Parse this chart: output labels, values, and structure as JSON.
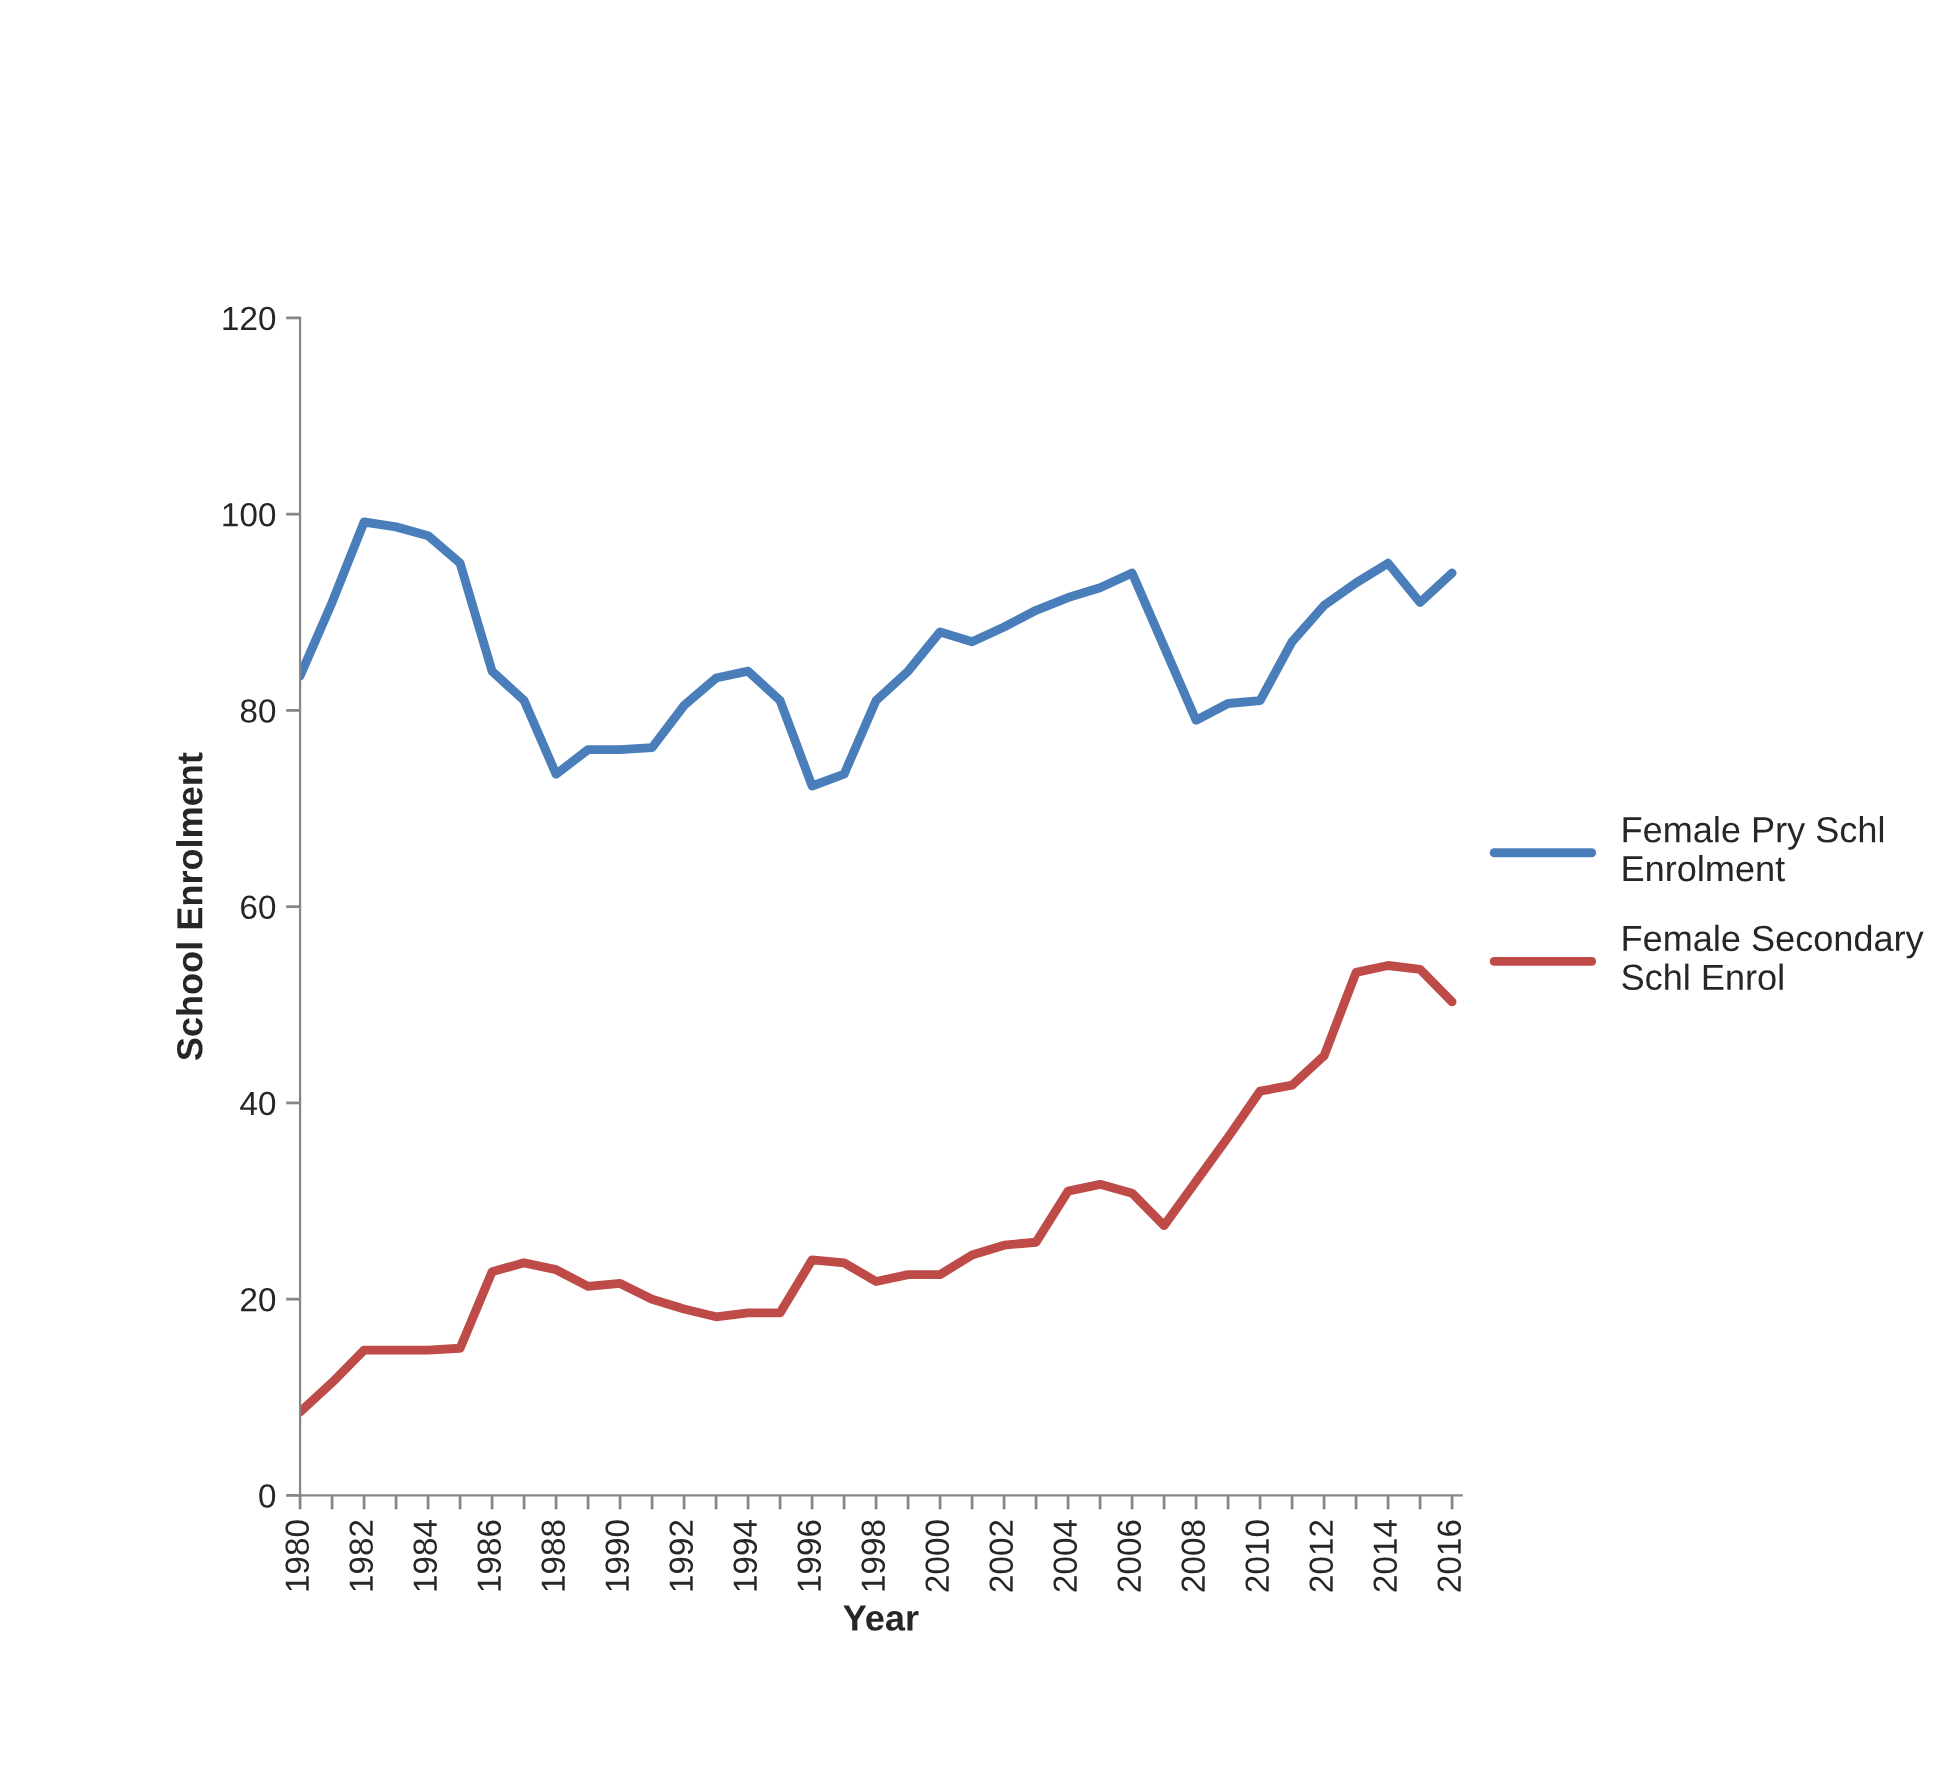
{
  "chart_data": {
    "type": "line",
    "xlabel": "Year",
    "ylabel": "School Enrolment",
    "categories": [
      "1980",
      null,
      "1982",
      null,
      "1984",
      null,
      "1986",
      null,
      "1988",
      null,
      "1990",
      null,
      "1992",
      null,
      "1994",
      null,
      "1996",
      null,
      "1998",
      null,
      "2000",
      null,
      "2002",
      null,
      "2004",
      null,
      "2006",
      null,
      "2008",
      null,
      "2010",
      null,
      "2012",
      null,
      "2014",
      null,
      "2016"
    ],
    "series": [
      {
        "name": "Female Pry Schl Enrolment",
        "color": "#4a7ebb",
        "values": [
          83.5,
          91,
          99.2,
          98.7,
          97.8,
          95,
          84,
          81,
          73.5,
          76,
          76,
          76.2,
          80.5,
          83.3,
          84,
          81,
          72.3,
          73.5,
          81,
          84,
          88,
          87,
          88.5,
          90.2,
          91.5,
          92.5,
          94,
          86.5,
          79,
          80.7,
          81,
          87,
          90.7,
          93,
          95,
          91,
          94
        ]
      },
      {
        "name": "Female Secondary Schl Enrol",
        "color": "#be4b48",
        "values": [
          8.5,
          11.5,
          14.8,
          14.8,
          14.8,
          15,
          22.8,
          23.7,
          23,
          21.3,
          21.6,
          20,
          19,
          18.2,
          18.6,
          18.6,
          24,
          23.7,
          21.8,
          22.5,
          22.5,
          24.5,
          25.5,
          25.8,
          31,
          31.7,
          30.8,
          27.5,
          32,
          36.5,
          41.2,
          41.8,
          44.8,
          53.3,
          54,
          53.6,
          50.3
        ]
      }
    ],
    "ylim": [
      0,
      120
    ],
    "yticks": [
      0,
      20,
      40,
      60,
      80,
      100,
      120
    ],
    "legend": "right",
    "grid": false,
    "marker": "none",
    "line_style": "solid"
  }
}
